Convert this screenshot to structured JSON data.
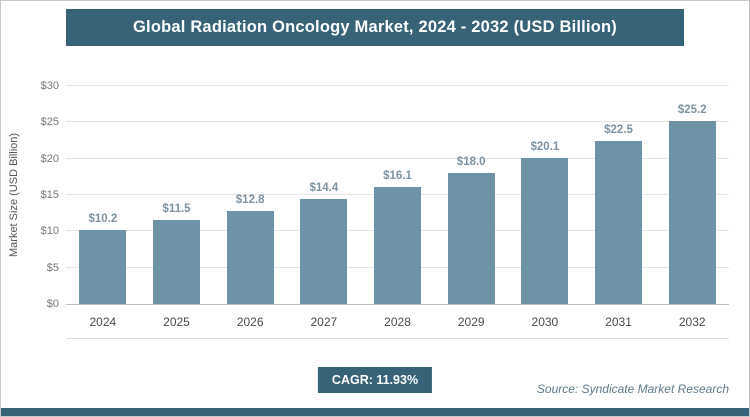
{
  "header": {
    "title": "Global Radiation Oncology Market, 2024 - 2032 (USD Billion)"
  },
  "chart_data": {
    "type": "bar",
    "title": "Global Radiation Oncology Market, 2024 - 2032 (USD Billion)",
    "categories": [
      "2024",
      "2025",
      "2026",
      "2027",
      "2028",
      "2029",
      "2030",
      "2031",
      "2032"
    ],
    "values": [
      10.2,
      11.5,
      12.8,
      14.4,
      16.1,
      18.0,
      20.1,
      22.5,
      25.2
    ],
    "value_labels": [
      "$10.2",
      "$11.5",
      "$12.8",
      "$14.4",
      "$16.1",
      "$18.0",
      "$20.1",
      "$22.5",
      "$25.2"
    ],
    "xlabel": "",
    "ylabel": "Market Size (USD Billion)",
    "ylim": [
      0,
      30
    ],
    "ytick_step": 5,
    "ytick_labels": [
      "$0",
      "$5",
      "$10",
      "$15",
      "$20",
      "$25",
      "$30"
    ],
    "grid": true,
    "legend": "none"
  },
  "footer": {
    "cagr_label": "CAGR: 11.93%",
    "source": "Source: Syndicate Market Research"
  },
  "colors": {
    "accent": "#366378",
    "bar": "#6E92A7",
    "value_label": "#7E92A0"
  }
}
